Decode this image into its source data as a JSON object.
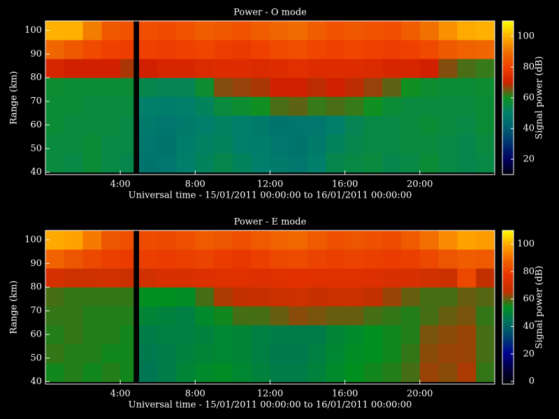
{
  "chart_data": [
    {
      "type": "heatmap",
      "title": "Power - O mode",
      "x_label": "Universal time - 15/01/2011 00:00:00 to 16/01/2011 00:00:00",
      "y_label": "Range (km)",
      "colorbar_label": "Signal power (dB)",
      "x_bins": [
        0,
        1,
        2,
        3,
        4,
        4.7,
        5,
        6,
        7,
        8,
        9,
        10,
        11,
        12,
        13,
        14,
        15,
        16,
        17,
        18,
        19,
        20,
        21,
        22,
        23,
        24
      ],
      "y_bins": [
        40,
        48,
        56,
        64,
        72,
        80,
        88,
        96,
        104
      ],
      "values": [
        [
          56,
          55,
          57,
          55,
          54,
          null,
          46,
          47,
          50,
          52,
          54,
          52,
          50,
          48,
          47,
          50,
          54,
          55,
          56,
          54,
          55,
          57,
          55,
          54,
          55
        ],
        [
          56,
          56,
          57,
          55,
          55,
          null,
          47,
          46,
          49,
          51,
          52,
          50,
          49,
          47,
          46,
          48,
          52,
          54,
          55,
          55,
          56,
          56,
          55,
          54,
          56
        ],
        [
          57,
          56,
          56,
          56,
          55,
          null,
          48,
          47,
          48,
          50,
          51,
          50,
          48,
          46,
          47,
          47,
          50,
          53,
          55,
          55,
          56,
          57,
          56,
          55,
          57
        ],
        [
          57,
          57,
          56,
          56,
          56,
          null,
          50,
          49,
          50,
          52,
          56,
          58,
          60,
          63,
          64,
          62,
          63,
          62,
          60,
          57,
          56,
          56,
          56,
          56,
          57
        ],
        [
          58,
          57,
          57,
          57,
          57,
          null,
          54,
          53,
          53,
          58,
          66,
          67,
          68,
          70,
          70,
          69,
          70,
          69,
          67,
          64,
          60,
          58,
          57,
          57,
          58
        ],
        [
          72,
          70,
          70,
          70,
          68,
          null,
          70,
          72,
          72,
          73,
          74,
          74,
          73,
          74,
          75,
          74,
          74,
          74,
          73,
          72,
          72,
          70,
          66,
          63,
          62
        ],
        [
          88,
          85,
          82,
          80,
          79,
          null,
          80,
          79,
          80,
          81,
          79,
          78,
          80,
          82,
          83,
          81,
          80,
          81,
          80,
          79,
          80,
          82,
          85,
          87,
          88
        ],
        [
          100,
          100,
          92,
          85,
          84,
          null,
          83,
          82,
          84,
          86,
          85,
          84,
          86,
          88,
          89,
          86,
          84,
          85,
          84,
          83,
          86,
          90,
          95,
          99,
          100
        ]
      ],
      "xlim": [
        0,
        24
      ],
      "ylim": [
        39,
        104
      ],
      "xticks": [
        {
          "value": 4,
          "label": "4:00"
        },
        {
          "value": 8,
          "label": "8:00"
        },
        {
          "value": 12,
          "label": "12:00"
        },
        {
          "value": 16,
          "label": "16:00"
        },
        {
          "value": 20,
          "label": "20:00"
        }
      ],
      "yticks": [
        40,
        50,
        60,
        70,
        80,
        90,
        100
      ],
      "clim": [
        10,
        110
      ],
      "cticks": [
        20,
        40,
        60,
        80,
        100
      ],
      "colormap": [
        "#000010",
        "#000060",
        "#003070",
        "#006070",
        "#00806a",
        "#109020",
        "#d02000",
        "#f04000",
        "#f07000",
        "#ffb000",
        "#ffff00"
      ]
    },
    {
      "type": "heatmap",
      "title": "Power - E mode",
      "x_label": "Universal time - 15/01/2011 00:00:00 to 16/01/2011 00:00:00",
      "y_label": "Range (km)",
      "colorbar_label": "Signal power (dB)",
      "x_bins": [
        0,
        1,
        2,
        3,
        4,
        4.7,
        5,
        6,
        7,
        8,
        9,
        10,
        11,
        12,
        13,
        14,
        15,
        16,
        17,
        18,
        19,
        20,
        21,
        22,
        23,
        24
      ],
      "y_bins": [
        40,
        48,
        56,
        64,
        72,
        80,
        88,
        96,
        104
      ],
      "values": [
        [
          55,
          56,
          55,
          56,
          55,
          null,
          45,
          47,
          50,
          52,
          53,
          51,
          49,
          47,
          47,
          49,
          52,
          54,
          55,
          56,
          58,
          63,
          62,
          64,
          57
        ],
        [
          57,
          56,
          56,
          55,
          55,
          null,
          46,
          47,
          49,
          50,
          51,
          50,
          48,
          46,
          46,
          48,
          51,
          53,
          54,
          55,
          57,
          62,
          63,
          63,
          58
        ],
        [
          56,
          57,
          56,
          56,
          55,
          null,
          47,
          48,
          48,
          49,
          51,
          50,
          48,
          47,
          47,
          47,
          50,
          52,
          54,
          55,
          56,
          61,
          62,
          63,
          58
        ],
        [
          57,
          57,
          56,
          56,
          56,
          null,
          50,
          49,
          48,
          52,
          55,
          58,
          58,
          60,
          62,
          61,
          60,
          60,
          58,
          57,
          56,
          58,
          60,
          61,
          57
        ],
        [
          58,
          57,
          57,
          57,
          57,
          null,
          54,
          54,
          53,
          58,
          64,
          66,
          67,
          68,
          69,
          67,
          68,
          68,
          66,
          63,
          60,
          58,
          58,
          60,
          59
        ],
        [
          71,
          69,
          69,
          70,
          68,
          null,
          70,
          72,
          72,
          73,
          74,
          74,
          73,
          74,
          75,
          74,
          74,
          74,
          73,
          72,
          72,
          70,
          68,
          82,
          66
        ],
        [
          88,
          85,
          82,
          80,
          79,
          null,
          80,
          79,
          80,
          81,
          79,
          78,
          80,
          82,
          83,
          81,
          80,
          81,
          80,
          79,
          80,
          82,
          85,
          87,
          86
        ],
        [
          100,
          99,
          92,
          85,
          84,
          null,
          83,
          82,
          84,
          86,
          85,
          84,
          86,
          88,
          89,
          86,
          84,
          85,
          84,
          83,
          86,
          90,
          95,
          99,
          98
        ]
      ],
      "xlim": [
        0,
        24
      ],
      "ylim": [
        39,
        104
      ],
      "xticks": [
        {
          "value": 4,
          "label": "4:00"
        },
        {
          "value": 8,
          "label": "8:00"
        },
        {
          "value": 12,
          "label": "12:00"
        },
        {
          "value": 16,
          "label": "16:00"
        },
        {
          "value": 20,
          "label": "20:00"
        }
      ],
      "yticks": [
        40,
        50,
        60,
        70,
        80,
        90,
        100
      ],
      "clim": [
        -2,
        110
      ],
      "cticks": [
        0,
        20,
        40,
        60,
        80,
        100
      ],
      "colormap": [
        "#000000",
        "#000040",
        "#000090",
        "#004070",
        "#007060",
        "#009020",
        "#c03000",
        "#e83000",
        "#f06000",
        "#ffa000",
        "#ffff00"
      ]
    }
  ]
}
